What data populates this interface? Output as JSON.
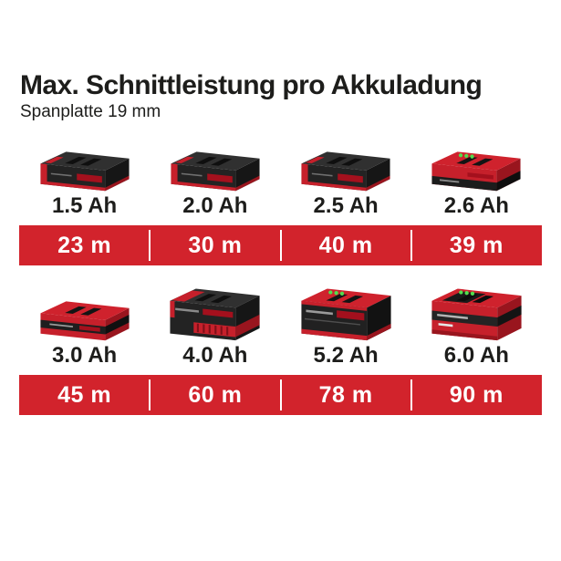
{
  "header": {
    "title": "Max. Schnittleistung pro Akkuladung",
    "subtitle": "Spanplatte 19 mm"
  },
  "colors": {
    "accent_red": "#d2232c",
    "text_dark": "#1d1d1b",
    "bar_text": "#ffffff"
  },
  "groups": [
    {
      "batteries": [
        {
          "capacity": "1.5 Ah",
          "cutting_length": "23 m",
          "battery_style": "black-slim"
        },
        {
          "capacity": "2.0 Ah",
          "cutting_length": "30 m",
          "battery_style": "black-slim"
        },
        {
          "capacity": "2.5 Ah",
          "cutting_length": "40 m",
          "battery_style": "black-slim"
        },
        {
          "capacity": "2.6 Ah",
          "cutting_length": "39 m",
          "battery_style": "red-top-plus-slim"
        }
      ]
    },
    {
      "batteries": [
        {
          "capacity": "3.0 Ah",
          "cutting_length": "45 m",
          "battery_style": "red-top-slim"
        },
        {
          "capacity": "4.0 Ah",
          "cutting_length": "60 m",
          "battery_style": "black-tall"
        },
        {
          "capacity": "5.2 Ah",
          "cutting_length": "78 m",
          "battery_style": "red-top-plus-tall"
        },
        {
          "capacity": "6.0 Ah",
          "cutting_length": "90 m",
          "battery_style": "red-tall"
        }
      ]
    }
  ],
  "chart_data": {
    "type": "table",
    "title": "Max. Schnittleistung pro Akkuladung",
    "subtitle": "Spanplatte 19 mm",
    "categories": [
      "1.5 Ah",
      "2.0 Ah",
      "2.5 Ah",
      "2.6 Ah",
      "3.0 Ah",
      "4.0 Ah",
      "5.2 Ah",
      "6.0 Ah"
    ],
    "values": [
      23,
      30,
      40,
      39,
      45,
      60,
      78,
      90
    ],
    "unit": "m",
    "layout": "two rows of four battery columns, each row followed by a red value band"
  }
}
